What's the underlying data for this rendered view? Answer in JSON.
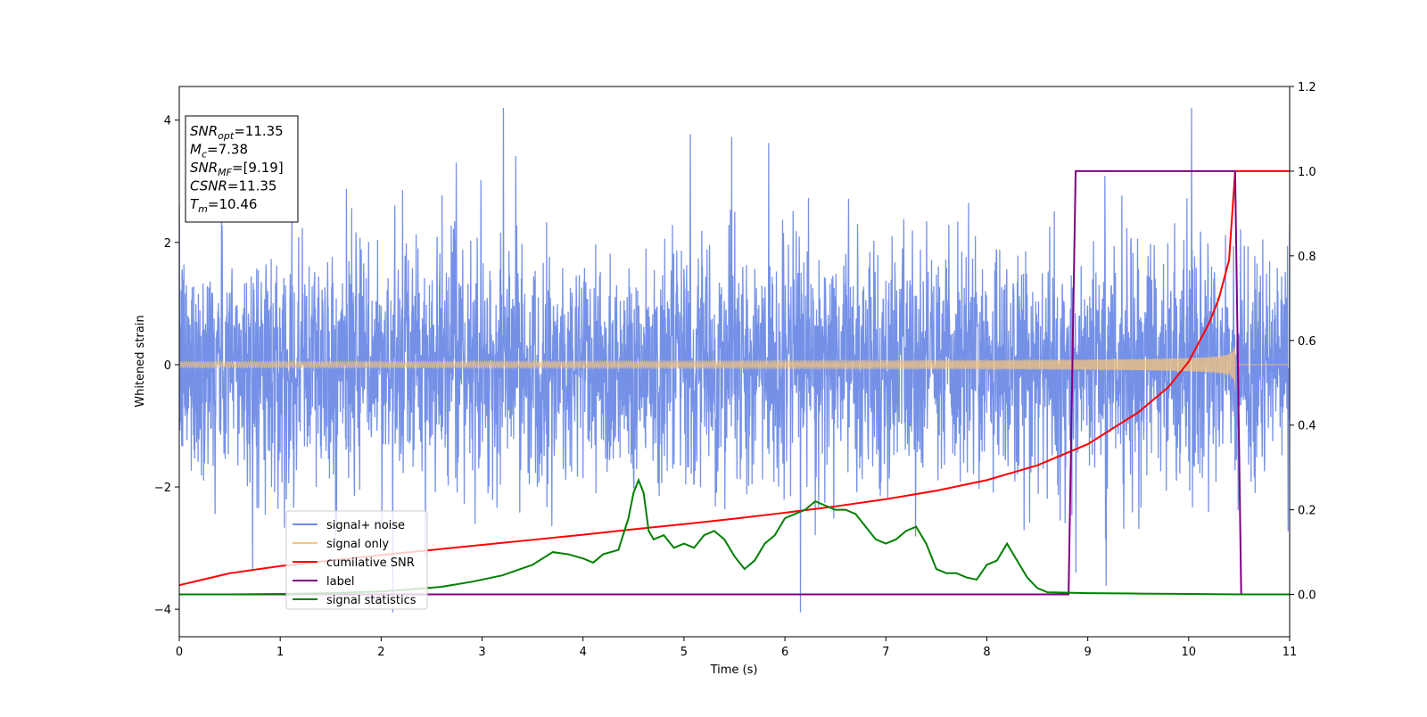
{
  "chart_data": {
    "type": "line",
    "xlabel": "Time (s)",
    "ylabel": "Whitened strain",
    "xlim": [
      0,
      11
    ],
    "ylim_left": [
      -4.45,
      4.55
    ],
    "ylim_right": [
      -0.1,
      1.2
    ],
    "x_ticks": [
      0,
      1,
      2,
      3,
      4,
      5,
      6,
      7,
      8,
      9,
      10,
      11
    ],
    "y_ticks_left": [
      -4,
      -2,
      0,
      2,
      4
    ],
    "y_ticks_right": [
      0.0,
      0.2,
      0.4,
      0.6,
      0.8,
      1.0,
      1.2
    ],
    "grid": false,
    "legend_position": "lower-left",
    "info_box": [
      {
        "sym": "SNR",
        "sub": "opt",
        "val": "=11.35"
      },
      {
        "sym": "M",
        "sub": "c",
        "val": "=7.38"
      },
      {
        "sym": "SNR",
        "sub": "MF",
        "val": "=[9.19]"
      },
      {
        "sym": "CSNR",
        "sub": "",
        "val": "=11.35"
      },
      {
        "sym": "T",
        "sub": "m",
        "val": "=10.46"
      }
    ],
    "series": [
      {
        "name": "signal+ noise",
        "axis": "left",
        "color": "#6e8be6",
        "kind": "noise",
        "description_values": {
          "x_start": 0,
          "x_end": 11,
          "y_min": -4.05,
          "y_max": 4.2
        }
      },
      {
        "name": "signal only",
        "axis": "left",
        "color": "#f6c47a",
        "kind": "chirp",
        "merger_time": 10.46,
        "peak_amplitude": 0.85,
        "start_amplitude": 0.05
      },
      {
        "name": "cumilative SNR",
        "axis": "right",
        "color": "#ff0000",
        "x": [
          0,
          0.5,
          1,
          1.5,
          2,
          2.5,
          3,
          3.5,
          4,
          4.5,
          5,
          5.5,
          6,
          6.5,
          7,
          7.5,
          8,
          8.5,
          9,
          9.5,
          9.8,
          10,
          10.2,
          10.3,
          10.4,
          10.46,
          11
        ],
        "y": [
          0.022,
          0.05,
          0.067,
          0.08,
          0.093,
          0.105,
          0.117,
          0.129,
          0.141,
          0.154,
          0.166,
          0.179,
          0.193,
          0.208,
          0.225,
          0.245,
          0.27,
          0.305,
          0.355,
          0.43,
          0.49,
          0.55,
          0.64,
          0.7,
          0.79,
          1.0,
          1.0
        ]
      },
      {
        "name": "label",
        "axis": "right",
        "color": "#800080",
        "x": [
          0,
          8.81,
          8.88,
          10.46,
          10.52,
          11
        ],
        "y": [
          0,
          0,
          1,
          1,
          0,
          0
        ]
      },
      {
        "name": "signal statistics",
        "axis": "right",
        "color": "#008000",
        "x": [
          0,
          0.5,
          1,
          1.5,
          2,
          2.3,
          2.6,
          2.9,
          3.2,
          3.5,
          3.7,
          3.85,
          4.0,
          4.1,
          4.2,
          4.35,
          4.45,
          4.5,
          4.55,
          4.6,
          4.65,
          4.7,
          4.8,
          4.9,
          5.0,
          5.1,
          5.2,
          5.3,
          5.4,
          5.5,
          5.6,
          5.7,
          5.8,
          5.9,
          6.0,
          6.1,
          6.2,
          6.3,
          6.4,
          6.5,
          6.6,
          6.7,
          6.8,
          6.9,
          7.0,
          7.1,
          7.2,
          7.3,
          7.4,
          7.5,
          7.6,
          7.7,
          7.8,
          7.9,
          8.0,
          8.1,
          8.2,
          8.3,
          8.4,
          8.5,
          8.6,
          8.8,
          9.0,
          9.5,
          10,
          10.5,
          11
        ],
        "y": [
          0.0,
          0.0,
          0.001,
          0.003,
          0.007,
          0.012,
          0.018,
          0.03,
          0.045,
          0.07,
          0.1,
          0.095,
          0.085,
          0.075,
          0.095,
          0.105,
          0.18,
          0.24,
          0.27,
          0.24,
          0.15,
          0.13,
          0.14,
          0.11,
          0.12,
          0.11,
          0.14,
          0.15,
          0.13,
          0.09,
          0.06,
          0.08,
          0.12,
          0.14,
          0.18,
          0.19,
          0.2,
          0.22,
          0.21,
          0.2,
          0.2,
          0.19,
          0.16,
          0.13,
          0.12,
          0.13,
          0.15,
          0.16,
          0.12,
          0.06,
          0.05,
          0.05,
          0.04,
          0.035,
          0.07,
          0.08,
          0.12,
          0.08,
          0.04,
          0.015,
          0.005,
          0.004,
          0.003,
          0.002,
          0.001,
          0.0,
          0.0
        ]
      }
    ]
  }
}
